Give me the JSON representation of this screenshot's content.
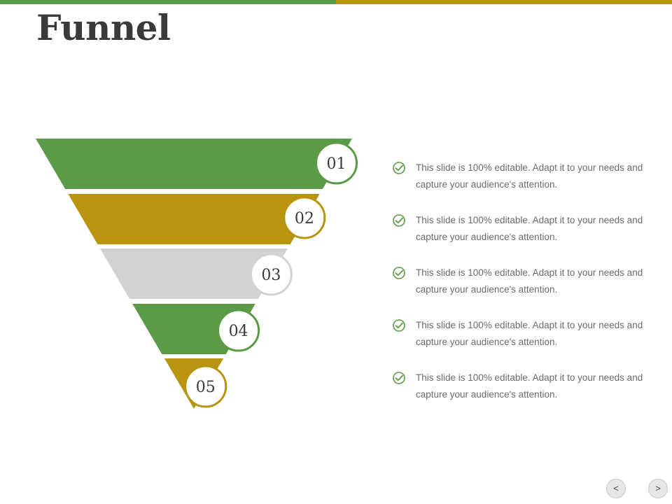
{
  "slide": {
    "title": "Funnel",
    "colors": {
      "green": "#5b9a46",
      "gold": "#b9950f",
      "gray": "#d3d1d2"
    }
  },
  "funnel": {
    "stages": [
      {
        "number": "01",
        "color": "#5b9a46"
      },
      {
        "number": "02",
        "color": "#b9950f"
      },
      {
        "number": "03",
        "color": "#d3d1d2"
      },
      {
        "number": "04",
        "color": "#5b9a46"
      },
      {
        "number": "05",
        "color": "#b9950f"
      }
    ]
  },
  "points": [
    {
      "icon": "check-circle-icon",
      "text": "This slide is 100% editable. Adapt it to your needs and capture your audience's attention."
    },
    {
      "icon": "check-circle-icon",
      "text": "This slide is 100% editable. Adapt it to your needs and capture your audience's attention."
    },
    {
      "icon": "check-circle-icon",
      "text": "This slide is 100% editable. Adapt it to your needs and capture your audience's attention."
    },
    {
      "icon": "check-circle-icon",
      "text": "This slide is 100% editable. Adapt it to your needs and capture your audience's attention."
    },
    {
      "icon": "check-circle-icon",
      "text": "This slide is 100% editable. Adapt it to your needs and capture your audience's attention."
    }
  ],
  "navigation": {
    "prev_label": "<",
    "next_label": ">"
  }
}
